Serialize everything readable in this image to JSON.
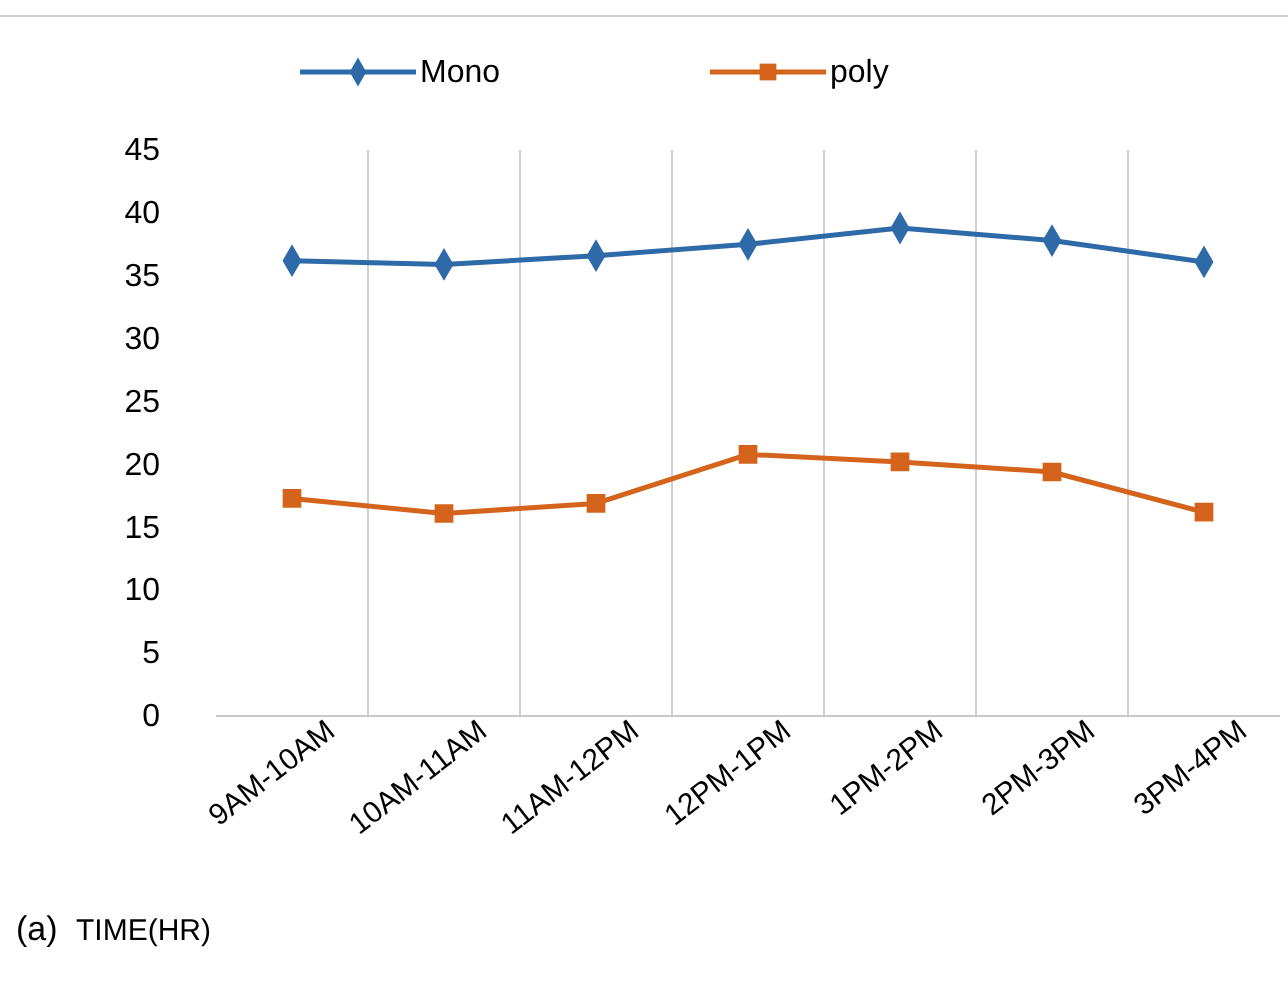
{
  "chart_data": {
    "type": "line",
    "xlabel": "TIME(HR)",
    "annotations": [
      "(a)"
    ],
    "categories": [
      "9AM-10AM",
      "10AM-11AM",
      "11AM-12PM",
      "12PM-1PM",
      "1PM-2PM",
      "2PM-3PM",
      "3PM-4PM"
    ],
    "series": [
      {
        "name": "Mono",
        "color": "#2e6aa8",
        "marker": "diamond",
        "values": [
          36.2,
          35.9,
          36.6,
          37.5,
          38.8,
          37.8,
          36.1
        ]
      },
      {
        "name": "poly",
        "color": "#d4641c",
        "marker": "square",
        "values": [
          17.3,
          16.1,
          16.9,
          20.8,
          20.2,
          19.4,
          16.2
        ]
      }
    ],
    "ylim": [
      0,
      45
    ],
    "yticks": [
      0,
      5,
      10,
      15,
      20,
      25,
      30,
      35,
      40,
      45
    ],
    "grid": "x",
    "legend": "top",
    "line_style": "solid"
  }
}
